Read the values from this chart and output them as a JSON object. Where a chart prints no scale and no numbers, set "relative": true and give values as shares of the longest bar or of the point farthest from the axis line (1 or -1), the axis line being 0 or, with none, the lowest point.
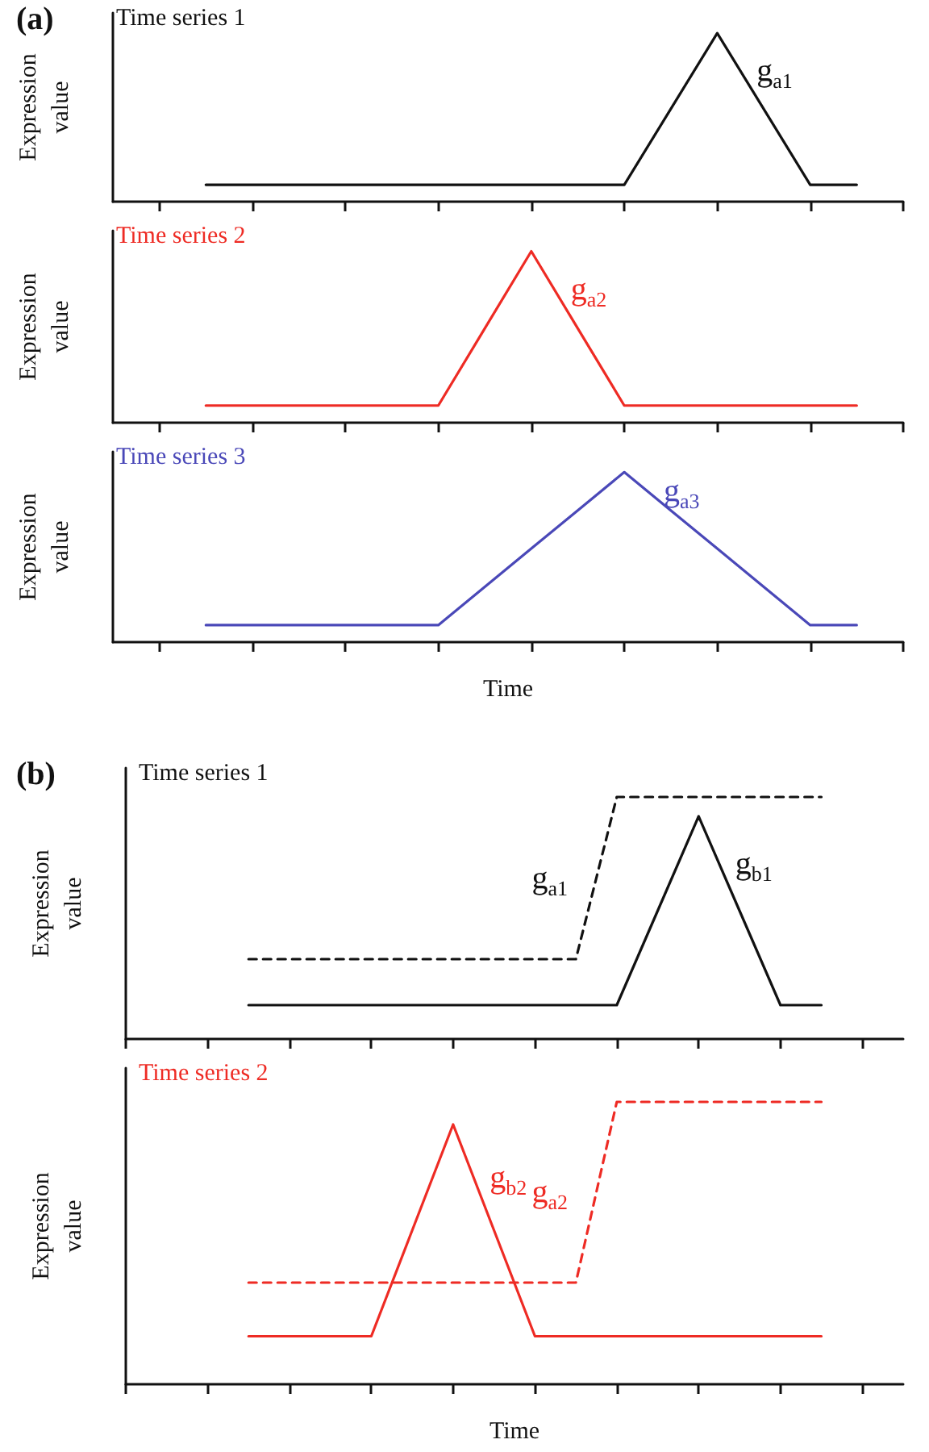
{
  "chart_data": [
    {
      "type": "line",
      "title": "Time series 1",
      "ylabel": "Expression value",
      "relative": true,
      "grid": false,
      "marker": "none",
      "annotations": [
        "(a)"
      ],
      "categories": [
        null,
        null,
        null,
        null,
        null,
        null,
        null,
        null,
        null,
        null,
        null,
        null,
        null,
        null,
        null,
        null,
        null,
        null
      ],
      "series": [
        {
          "name": "g$_{a1}$",
          "color": "#111111",
          "line_style": "solid",
          "values": [
            null,
            null,
            0.1,
            0.1,
            0.1,
            0.1,
            0.1,
            0.1,
            0.1,
            0.1,
            0.1,
            0.1,
            0.55,
            1,
            0.55,
            0.1,
            0.1,
            null
          ]
        }
      ]
    },
    {
      "type": "line",
      "title": "Time series 2",
      "ylabel": "Expression value",
      "relative": true,
      "grid": false,
      "marker": "none",
      "categories": [
        null,
        null,
        null,
        null,
        null,
        null,
        null,
        null,
        null,
        null,
        null,
        null,
        null,
        null,
        null,
        null,
        null,
        null
      ],
      "series": [
        {
          "name": "g$_{a2}$",
          "color": "#ee2b24",
          "line_style": "solid",
          "values": [
            null,
            null,
            0.1,
            0.1,
            0.1,
            0.1,
            0.1,
            0.1,
            0.55,
            1,
            0.55,
            0.1,
            0.1,
            0.1,
            0.1,
            0.1,
            0.1,
            null
          ]
        }
      ]
    },
    {
      "type": "line",
      "title": "Time series 3",
      "xlabel": "Time",
      "ylabel": "Expression value",
      "relative": true,
      "grid": false,
      "marker": "none",
      "categories": [
        null,
        null,
        null,
        null,
        null,
        null,
        null,
        null,
        null,
        null,
        null,
        null,
        null,
        null,
        null,
        null,
        null,
        null
      ],
      "series": [
        {
          "name": "g$_{a3}$",
          "color": "#4a48b8",
          "line_style": "solid",
          "values": [
            null,
            null,
            0.1,
            0.1,
            0.1,
            0.1,
            0.1,
            0.1,
            0.325,
            0.55,
            0.775,
            1,
            0.775,
            0.55,
            0.325,
            0.1,
            0.1,
            null
          ]
        }
      ]
    },
    {
      "type": "line",
      "title": "Time series 1",
      "ylabel": "Expression value",
      "relative": true,
      "grid": false,
      "marker": "none",
      "annotations": [
        "(b)"
      ],
      "categories": [
        null,
        null,
        null,
        null,
        null,
        null,
        null,
        null,
        null,
        null,
        null,
        null,
        null,
        null,
        null,
        null,
        null,
        null,
        null,
        null
      ],
      "series": [
        {
          "name": "g$_{a1}$",
          "color": "#111111",
          "line_style": "dashed",
          "values": [
            null,
            null,
            null,
            0.33,
            0.33,
            0.33,
            0.33,
            0.33,
            0.33,
            0.33,
            0.33,
            0.33,
            1,
            1,
            1,
            1,
            1,
            1,
            null,
            null
          ]
        },
        {
          "name": "g$_{b1}$",
          "color": "#111111",
          "line_style": "solid",
          "values": [
            null,
            null,
            null,
            0.14,
            0.14,
            0.14,
            0.14,
            0.14,
            0.14,
            0.14,
            0.14,
            0.14,
            0.14,
            0.53,
            0.92,
            0.53,
            0.14,
            0.14,
            null,
            null
          ]
        }
      ]
    },
    {
      "type": "line",
      "title": "Time series 2",
      "xlabel": "Time",
      "ylabel": "Expression value",
      "relative": true,
      "grid": false,
      "marker": "none",
      "categories": [
        null,
        null,
        null,
        null,
        null,
        null,
        null,
        null,
        null,
        null,
        null,
        null,
        null,
        null,
        null,
        null,
        null,
        null,
        null,
        null
      ],
      "series": [
        {
          "name": "g$_{a2}$",
          "color": "#ee2b24",
          "line_style": "dashed",
          "values": [
            null,
            null,
            null,
            0.36,
            0.36,
            0.36,
            0.36,
            0.36,
            0.36,
            0.36,
            0.36,
            0.36,
            1,
            1,
            1,
            1,
            1,
            1,
            null,
            null
          ]
        },
        {
          "name": "g$_{b2}$",
          "color": "#ee2b24",
          "line_style": "solid",
          "values": [
            null,
            null,
            null,
            0.17,
            0.17,
            0.17,
            0.17,
            0.545,
            0.92,
            0.545,
            0.17,
            0.17,
            0.17,
            0.17,
            0.17,
            0.17,
            0.17,
            0.17,
            null,
            null
          ]
        }
      ]
    }
  ]
}
